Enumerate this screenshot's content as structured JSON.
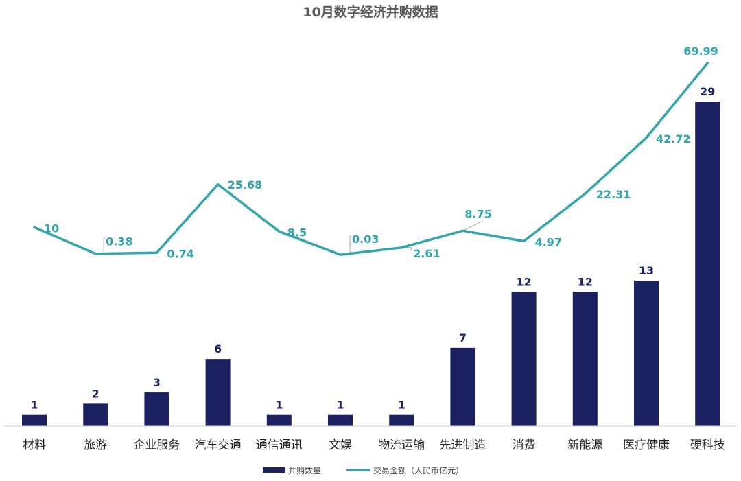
{
  "chart_data": {
    "type": "bar+line",
    "title": "10月数字经济并购数据",
    "categories": [
      "材料",
      "旅游",
      "企业服务",
      "汽车交通",
      "通信通讯",
      "文娱",
      "物流运输",
      "先进制造",
      "消费",
      "新能源",
      "医疗健康",
      "硬科技"
    ],
    "series": [
      {
        "name": "并购数量",
        "type": "bar",
        "color": "#1b2060",
        "values": [
          1,
          2,
          3,
          6,
          1,
          1,
          1,
          7,
          12,
          12,
          13,
          29
        ]
      },
      {
        "name": "交易金额（人民币亿元）",
        "type": "line",
        "color": "#33a6ad",
        "values": [
          10,
          0.38,
          0.74,
          25.68,
          8.5,
          0.03,
          2.61,
          8.75,
          4.97,
          22.31,
          42.72,
          69.99
        ]
      }
    ],
    "legend_position": "bottom",
    "grid": false
  }
}
